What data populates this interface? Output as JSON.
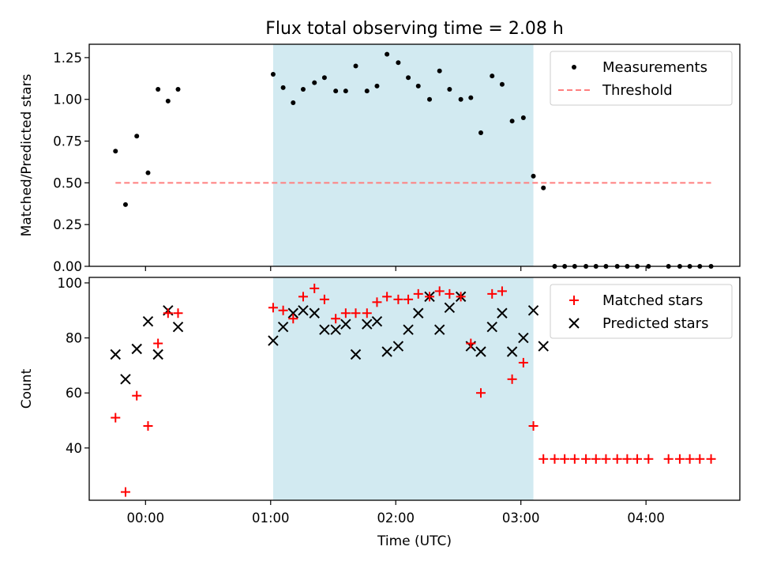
{
  "figure": {
    "title": "Flux total observing time = 2.08 h",
    "xlabel": "Time (UTC)"
  },
  "chart_data": [
    {
      "type": "scatter",
      "ylabel": "Matched/Predicted stars",
      "xlim": [
        -0.45,
        4.75
      ],
      "ylim": [
        0,
        1.33
      ],
      "grid": false,
      "legend_position": "upper right",
      "highlight_span": [
        1.02,
        3.1
      ],
      "yticks": [
        0.0,
        0.25,
        0.5,
        0.75,
        1.0,
        1.25
      ],
      "yticklabels": [
        "0.00",
        "0.25",
        "0.50",
        "0.75",
        "1.00",
        "1.25"
      ],
      "series": [
        {
          "name": "Measurements",
          "marker": "dot",
          "x": [
            -0.24,
            -0.16,
            -0.07,
            0.02,
            0.1,
            0.18,
            0.26,
            1.02,
            1.1,
            1.18,
            1.26,
            1.35,
            1.43,
            1.52,
            1.6,
            1.68,
            1.77,
            1.85,
            1.93,
            2.02,
            2.1,
            2.18,
            2.27,
            2.35,
            2.43,
            2.52,
            2.6,
            2.68,
            2.77,
            2.85,
            2.93,
            3.02,
            3.1,
            3.18,
            3.27,
            3.35,
            3.43,
            3.52,
            3.6,
            3.68,
            3.77,
            3.85,
            3.93,
            4.02,
            4.18,
            4.27,
            4.35,
            4.43,
            4.52
          ],
          "y": [
            0.69,
            0.37,
            0.78,
            0.56,
            1.06,
            0.99,
            1.06,
            1.15,
            1.07,
            0.98,
            1.06,
            1.1,
            1.13,
            1.05,
            1.05,
            1.2,
            1.05,
            1.08,
            1.27,
            1.22,
            1.13,
            1.08,
            1.0,
            1.17,
            1.06,
            1.0,
            1.01,
            0.8,
            1.14,
            1.09,
            0.87,
            0.89,
            0.54,
            0.47,
            0.0,
            0.0,
            0.0,
            0.0,
            0.0,
            0.0,
            0.0,
            0.0,
            0.0,
            0.0,
            0.0,
            0.0,
            0.0,
            0.0,
            0.0
          ],
          "color": "#000000"
        },
        {
          "name": "Threshold",
          "line": "dashed",
          "x": [
            -0.24,
            4.52
          ],
          "y": [
            0.5,
            0.5
          ],
          "color": "#ff7f7f"
        }
      ]
    },
    {
      "type": "scatter",
      "ylabel": "Count",
      "xlim": [
        -0.45,
        4.75
      ],
      "ylim": [
        21,
        102
      ],
      "grid": false,
      "legend_position": "upper right",
      "highlight_span": [
        1.02,
        3.1
      ],
      "yticks": [
        40,
        60,
        80,
        100
      ],
      "yticklabels": [
        "40",
        "60",
        "80",
        "100"
      ],
      "xticks": [
        0,
        1,
        2,
        3,
        4
      ],
      "xticklabels": [
        "00:00",
        "01:00",
        "02:00",
        "03:00",
        "04:00"
      ],
      "series": [
        {
          "name": "Matched stars",
          "marker": "plus",
          "color": "#ff0000",
          "x": [
            -0.24,
            -0.16,
            -0.07,
            0.02,
            0.1,
            0.18,
            0.26,
            1.02,
            1.1,
            1.18,
            1.26,
            1.35,
            1.43,
            1.52,
            1.6,
            1.68,
            1.77,
            1.85,
            1.93,
            2.02,
            2.1,
            2.18,
            2.27,
            2.35,
            2.43,
            2.52,
            2.6,
            2.68,
            2.77,
            2.85,
            2.93,
            3.02,
            3.1,
            3.18,
            3.27,
            3.35,
            3.43,
            3.52,
            3.6,
            3.68,
            3.77,
            3.85,
            3.93,
            4.02,
            4.18,
            4.27,
            4.35,
            4.43,
            4.52
          ],
          "y": [
            51,
            24,
            59,
            48,
            78,
            89,
            89,
            91,
            90,
            87,
            95,
            98,
            94,
            87,
            89,
            89,
            89,
            93,
            95,
            94,
            94,
            96,
            95,
            97,
            96,
            95,
            78,
            60,
            96,
            97,
            65,
            71,
            48,
            36,
            36,
            36,
            36,
            36,
            36,
            36,
            36,
            36,
            36,
            36,
            36,
            36,
            36,
            36,
            36
          ]
        },
        {
          "name": "Predicted stars",
          "marker": "x",
          "color": "#000000",
          "x": [
            -0.24,
            -0.16,
            -0.07,
            0.02,
            0.1,
            0.18,
            0.26,
            1.02,
            1.1,
            1.18,
            1.26,
            1.35,
            1.43,
            1.52,
            1.6,
            1.68,
            1.77,
            1.85,
            1.93,
            2.02,
            2.1,
            2.18,
            2.27,
            2.35,
            2.43,
            2.52,
            2.6,
            2.68,
            2.77,
            2.85,
            2.93,
            3.02,
            3.1,
            3.18
          ],
          "y": [
            74,
            65,
            76,
            86,
            74,
            90,
            84,
            79,
            84,
            89,
            90,
            89,
            83,
            83,
            85,
            74,
            85,
            86,
            75,
            77,
            83,
            89,
            95,
            83,
            91,
            95,
            77,
            75,
            84,
            89,
            75,
            80,
            90,
            77
          ]
        }
      ]
    }
  ],
  "colors": {
    "highlight_fill": "#add8e6",
    "axis": "#000000"
  }
}
